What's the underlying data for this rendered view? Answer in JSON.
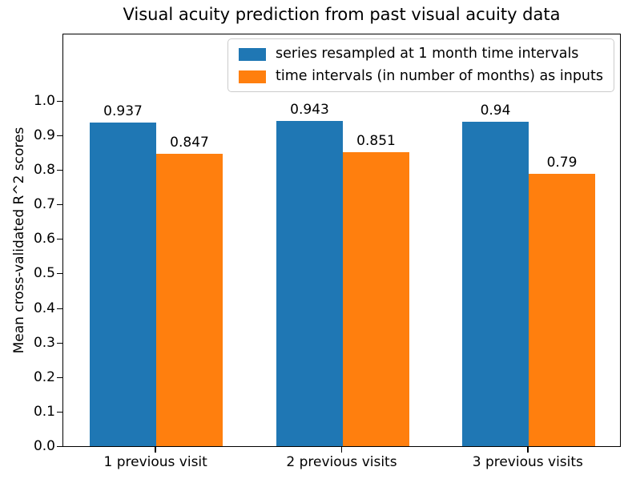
{
  "chart_data": {
    "type": "bar",
    "title": "Visual acuity prediction from past visual acuity data",
    "xlabel": "",
    "ylabel": "Mean cross-validated R^2 scores",
    "categories": [
      "1 previous visit",
      "2 previous visits",
      "3 previous visits"
    ],
    "series": [
      {
        "name": "series resampled at 1 month time intervals",
        "color": "#1f77b4",
        "values": [
          0.937,
          0.943,
          0.94
        ],
        "labels": [
          "0.937",
          "0.943",
          "0.94"
        ]
      },
      {
        "name": "time intervals (in number of months) as inputs",
        "color": "#ff7f0e",
        "values": [
          0.847,
          0.851,
          0.79
        ],
        "labels": [
          "0.847",
          "0.851",
          "0.79"
        ]
      }
    ],
    "yticks": [
      "0.0",
      "0.1",
      "0.2",
      "0.3",
      "0.4",
      "0.5",
      "0.6",
      "0.7",
      "0.8",
      "0.9",
      "1.0"
    ],
    "ylim": [
      0,
      1.2
    ],
    "grid": false,
    "legend_position": "upper right",
    "background_color": "#ffffff",
    "text_color": "#000000"
  }
}
